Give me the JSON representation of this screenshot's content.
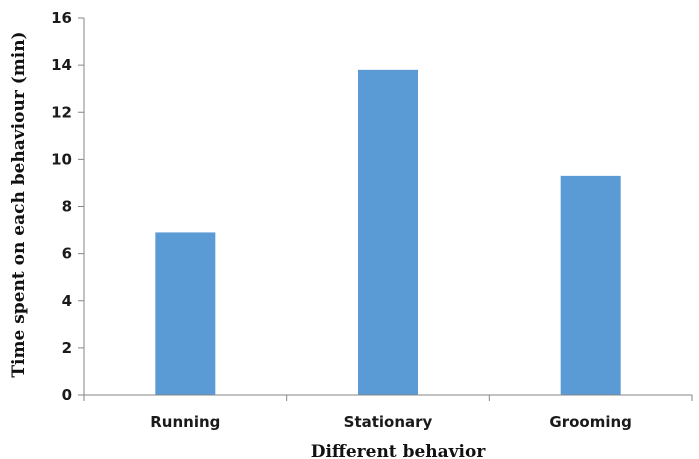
{
  "chart_data": {
    "type": "bar",
    "title": "",
    "xlabel": "Different behavior",
    "ylabel": "Time spent on each behaviour (min)",
    "categories": [
      "Running",
      "Stationary",
      "Grooming"
    ],
    "values": [
      6.9,
      13.8,
      9.3
    ],
    "ylim": [
      0,
      16
    ],
    "yticks": [
      0,
      2,
      4,
      6,
      8,
      10,
      12,
      14,
      16
    ],
    "bar_color": "#5b9bd5",
    "axis_color": "#868686",
    "grid": false,
    "legend": "none"
  }
}
